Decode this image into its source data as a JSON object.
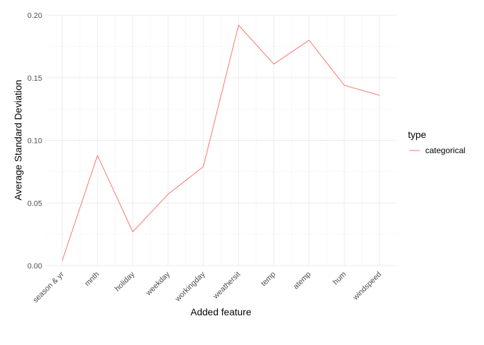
{
  "chart_data": {
    "type": "line",
    "xlabel": "Added feature",
    "ylabel": "Average Standard Deviation",
    "categories": [
      "season & yr",
      "mnth",
      "holiday",
      "weekday",
      "workingday",
      "weathersit",
      "temp",
      "atemp",
      "hum",
      "windspeed"
    ],
    "series": [
      {
        "name": "categorical",
        "color": "#F8766D",
        "values": [
          0.004,
          0.088,
          0.027,
          0.057,
          0.079,
          0.192,
          0.161,
          0.18,
          0.144,
          0.136
        ]
      }
    ],
    "ylim": [
      0,
      0.2
    ],
    "yticks": [
      0,
      0.05,
      0.1,
      0.15,
      0.2
    ],
    "ytick_labels": [
      "0.00",
      "0.05",
      "0.10",
      "0.15",
      "0.20"
    ],
    "grid": true,
    "legend": {
      "title": "type",
      "placement": "right"
    }
  }
}
